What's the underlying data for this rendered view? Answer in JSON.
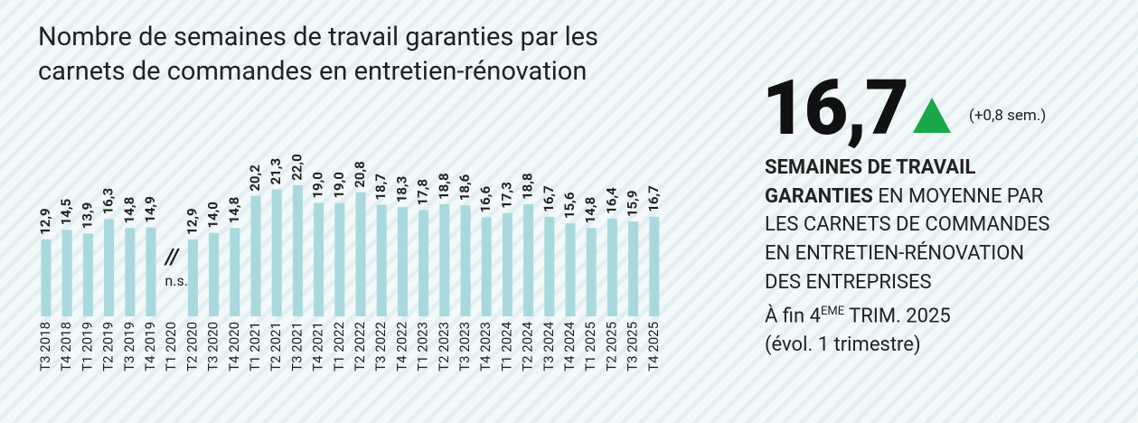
{
  "chart_data": {
    "type": "bar",
    "title": "Nombre de semaines de travail garanties par les carnets de commandes en entretien-rénovation",
    "categories": [
      "T3 2018",
      "T4 2018",
      "T1 2019",
      "T2 2019",
      "T3 2019",
      "T4 2019",
      "T1 2020",
      "T2 2020",
      "T3 2020",
      "T4 2020",
      "T1 2021",
      "T2 2021",
      "T3 2021",
      "T4 2021",
      "T1 2022",
      "T2 2022",
      "T3 2022",
      "T4 2022",
      "T1 2023",
      "T2 2023",
      "T3 2023",
      "T4 2023",
      "T1 2024",
      "T2 2024",
      "T3 2024",
      "T4 2024",
      "T1 2025",
      "T2 2025",
      "T3 2025",
      "T4 2025"
    ],
    "values": [
      12.9,
      14.5,
      13.9,
      16.3,
      14.8,
      14.9,
      null,
      12.9,
      14.0,
      14.8,
      20.2,
      21.3,
      22.0,
      19.0,
      19.0,
      20.8,
      18.7,
      18.3,
      17.8,
      18.8,
      18.6,
      16.6,
      17.3,
      18.8,
      16.7,
      15.6,
      14.8,
      16.4,
      15.9,
      16.7
    ],
    "value_labels": [
      "12,9",
      "14,5",
      "13,9",
      "16,3",
      "14,8",
      "14,9",
      null,
      "12,9",
      "14,0",
      "14,8",
      "20,2",
      "21,3",
      "22,0",
      "19,0",
      "19,0",
      "20,8",
      "18,7",
      "18,3",
      "17,8",
      "18,8",
      "18,6",
      "16,6",
      "17,3",
      "18,8",
      "16,7",
      "15,6",
      "14,8",
      "16,4",
      "15,9",
      "16,7"
    ],
    "gap_marker": "//",
    "gap_label": "n.s.",
    "color": "#a9d9dd"
  },
  "highlight": {
    "value": "16,7",
    "change": "(+0,8 sem.)",
    "arrow_color": "#1aa84a",
    "lines": [
      {
        "bold": "SEMAINES DE TRAVAIL"
      },
      {
        "bold": "GARANTIES",
        "text": " EN MOYENNE PAR"
      },
      {
        "text": "LES CARNETS DE COMMANDES"
      },
      {
        "text": "EN ENTRETIEN-RÉNOVATION"
      },
      {
        "text": "DES ENTREPRISES"
      },
      {
        "text": "À fin 4",
        "sup": "EME",
        "after": " TRIM. 2025"
      },
      {
        "text": "(évol. 1 trimestre)"
      }
    ]
  }
}
